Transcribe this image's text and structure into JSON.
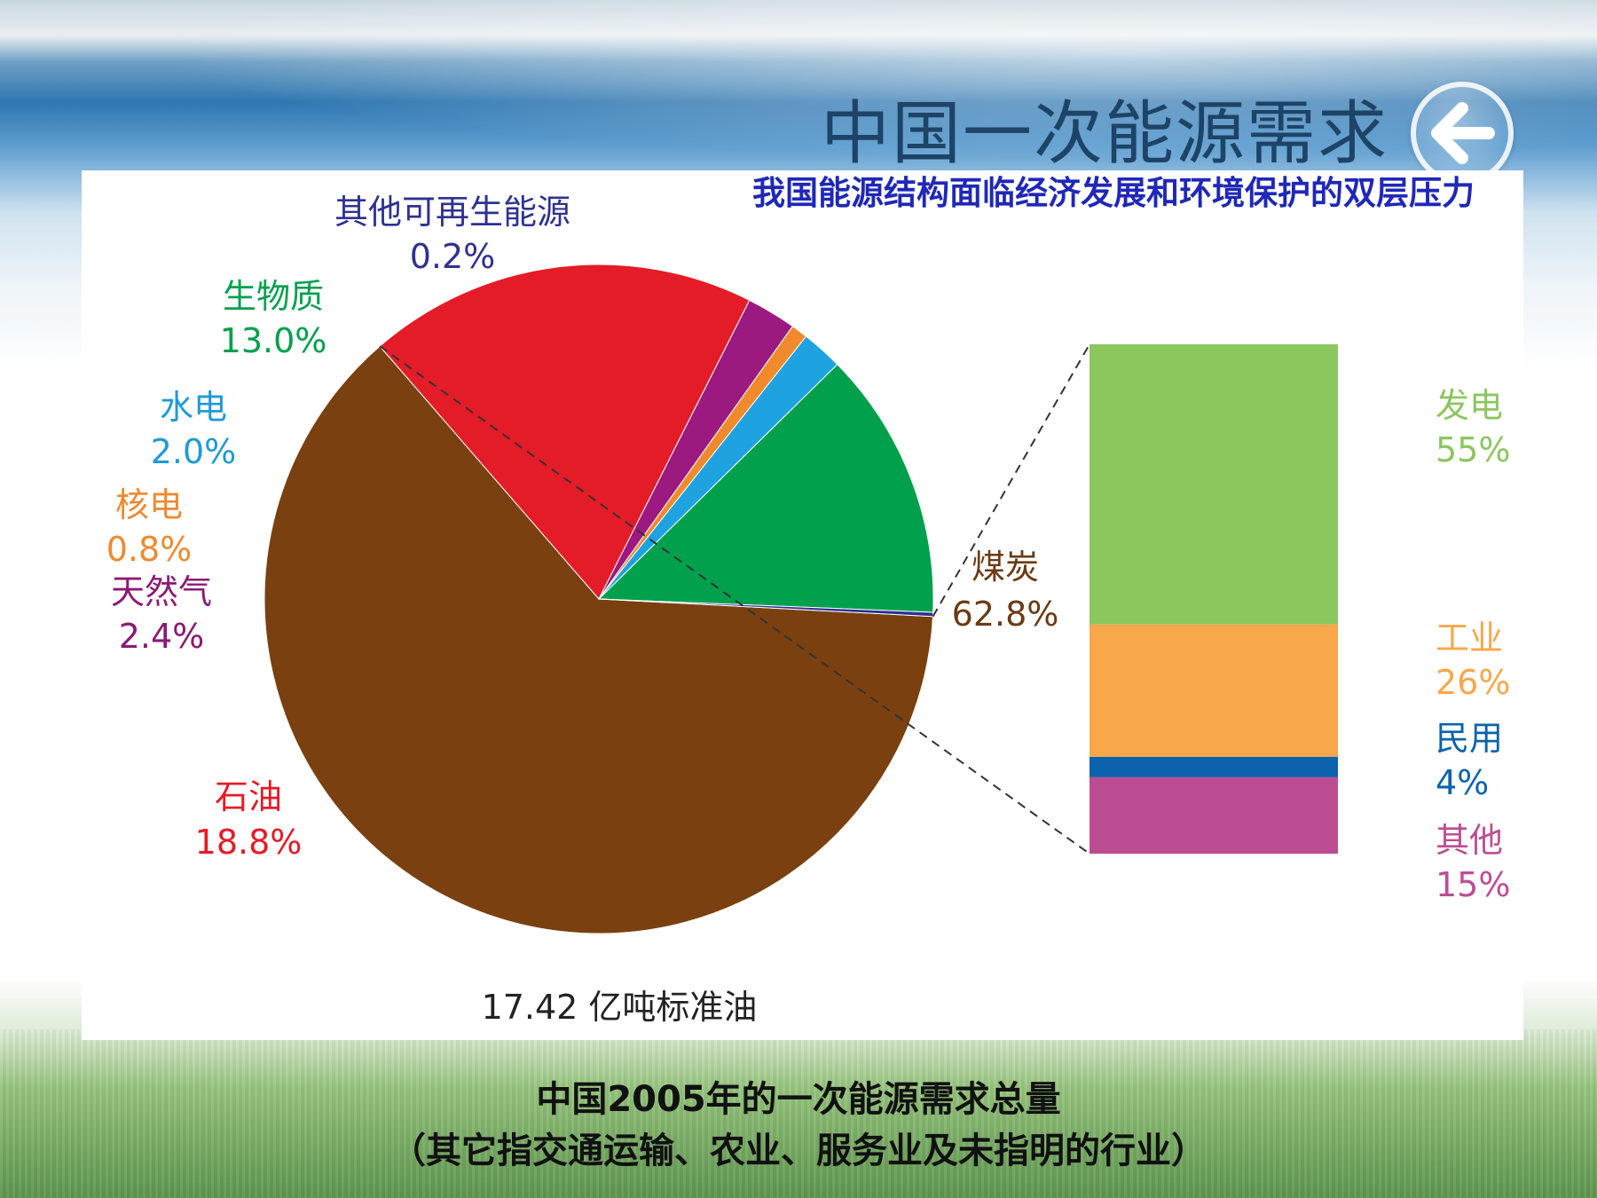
{
  "slide": {
    "title": "中国一次能源需求",
    "subtitle": "我国能源结构面临经济发展和环境保护的双层压力",
    "total_label": "17.42 亿吨标准油",
    "caption_line1": "中国2005年的一次能源需求总量",
    "caption_line2": "（其它指交通运输、农业、服务业及未指明的行业）"
  },
  "chart_data": [
    {
      "type": "pie",
      "slices": [
        {
          "label": "煤炭",
          "value": 62.8,
          "display": "62.8%",
          "color": "#7a4010",
          "label_color": "#6b3a14"
        },
        {
          "label": "石油",
          "value": 18.8,
          "display": "18.8%",
          "color": "#e41c27",
          "label_color": "#e41c27"
        },
        {
          "label": "天然气",
          "value": 2.4,
          "display": "2.4%",
          "color": "#9c1a80",
          "label_color": "#8b1a74"
        },
        {
          "label": "核电",
          "value": 0.8,
          "display": "0.8%",
          "color": "#f08a2c",
          "label_color": "#ee8a30"
        },
        {
          "label": "水电",
          "value": 2.0,
          "display": "2.0%",
          "color": "#1ea2e0",
          "label_color": "#1f9ad8"
        },
        {
          "label": "生物质",
          "value": 13.0,
          "display": "13.0%",
          "color": "#00a04d",
          "label_color": "#00a04d"
        },
        {
          "label": "其他可再生能源",
          "value": 0.2,
          "display": "0.2%",
          "color": "#2e3192",
          "label_color": "#2e3192"
        }
      ]
    },
    {
      "type": "bar",
      "stacked": true,
      "breakdown_of": "煤炭",
      "segments": [
        {
          "label": "发电",
          "value": 55,
          "display": "55%",
          "color": "#8cc65f",
          "label_color": "#8cc65f"
        },
        {
          "label": "工业",
          "value": 26,
          "display": "26%",
          "color": "#f8a74a",
          "label_color": "#f8a74a"
        },
        {
          "label": "民用",
          "value": 4,
          "display": "4%",
          "color": "#0b63ad",
          "label_color": "#0b63ad"
        },
        {
          "label": "其他",
          "value": 15,
          "display": "15%",
          "color": "#bd4d93",
          "label_color": "#bd4d93"
        }
      ]
    }
  ]
}
